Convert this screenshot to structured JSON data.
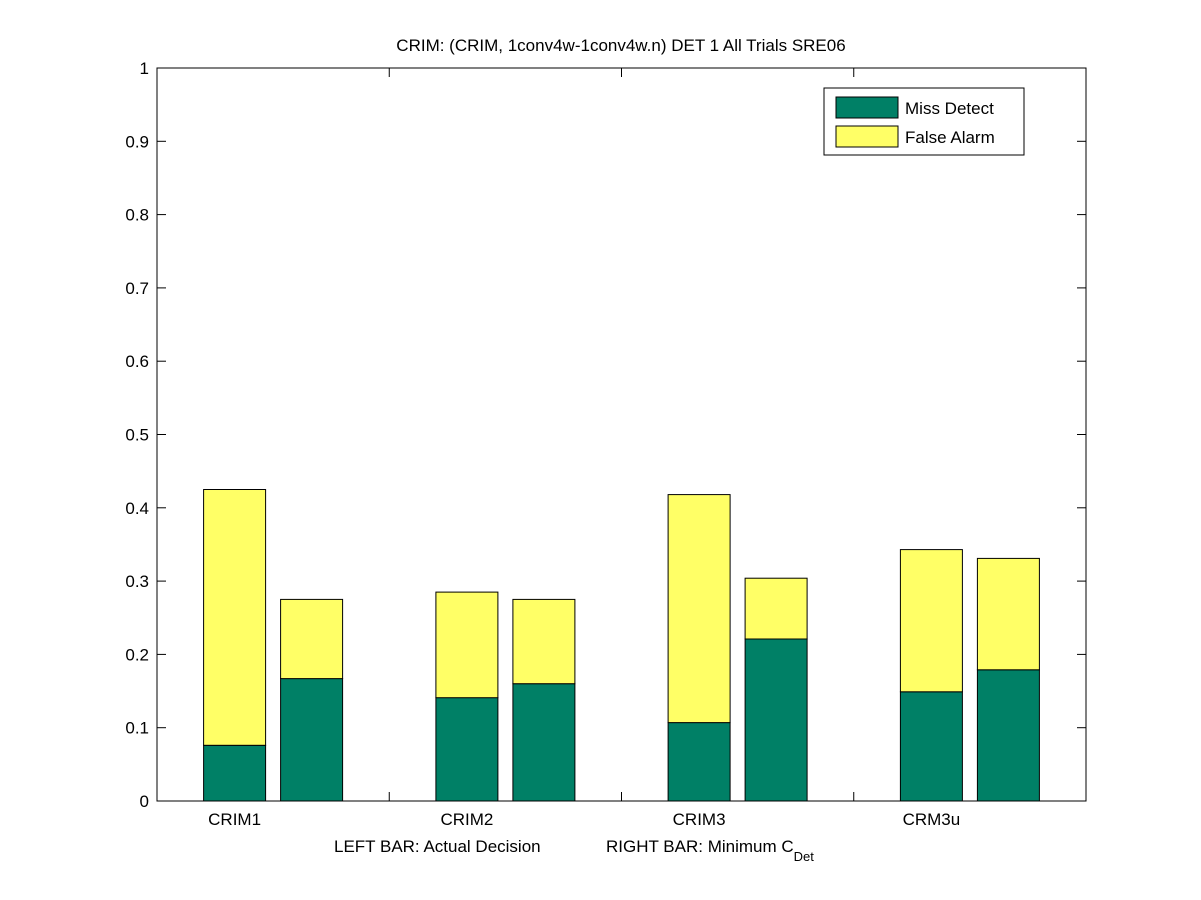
{
  "chart_data": {
    "type": "bar",
    "stacked": true,
    "title": "CRIM: (CRIM, 1conv4w-1conv4w.n) DET 1 All Trials SRE06",
    "xlabel_left": "LEFT BAR: Actual Decision",
    "xlabel_right_main": "RIGHT BAR: Minimum C",
    "xlabel_right_sub": "Det",
    "ylabel": "",
    "ylim": [
      0,
      1
    ],
    "yticks": [
      "0",
      "0.1",
      "0.2",
      "0.3",
      "0.4",
      "0.5",
      "0.6",
      "0.7",
      "0.8",
      "0.9",
      "1"
    ],
    "categories": [
      "CRIM1",
      "CRIM2",
      "CRIM3",
      "CRM3u"
    ],
    "grid": false,
    "legend_position": "top-right",
    "colors": {
      "miss_detect": "#008066",
      "false_alarm": "#ffff66",
      "axis": "#000000",
      "background": "#ffffff"
    },
    "series": [
      {
        "name": "Miss Detect",
        "key": "miss_detect"
      },
      {
        "name": "False Alarm",
        "key": "false_alarm"
      }
    ],
    "bars": [
      {
        "category": "CRIM1",
        "bar": "actual",
        "miss_detect": 0.076,
        "false_alarm": 0.349
      },
      {
        "category": "CRIM1",
        "bar": "minimum",
        "miss_detect": 0.167,
        "false_alarm": 0.108
      },
      {
        "category": "CRIM2",
        "bar": "actual",
        "miss_detect": 0.141,
        "false_alarm": 0.144
      },
      {
        "category": "CRIM2",
        "bar": "minimum",
        "miss_detect": 0.16,
        "false_alarm": 0.115
      },
      {
        "category": "CRIM3",
        "bar": "actual",
        "miss_detect": 0.107,
        "false_alarm": 0.311
      },
      {
        "category": "CRIM3",
        "bar": "minimum",
        "miss_detect": 0.221,
        "false_alarm": 0.083
      },
      {
        "category": "CRM3u",
        "bar": "actual",
        "miss_detect": 0.149,
        "false_alarm": 0.194
      },
      {
        "category": "CRM3u",
        "bar": "minimum",
        "miss_detect": 0.179,
        "false_alarm": 0.152
      }
    ]
  }
}
